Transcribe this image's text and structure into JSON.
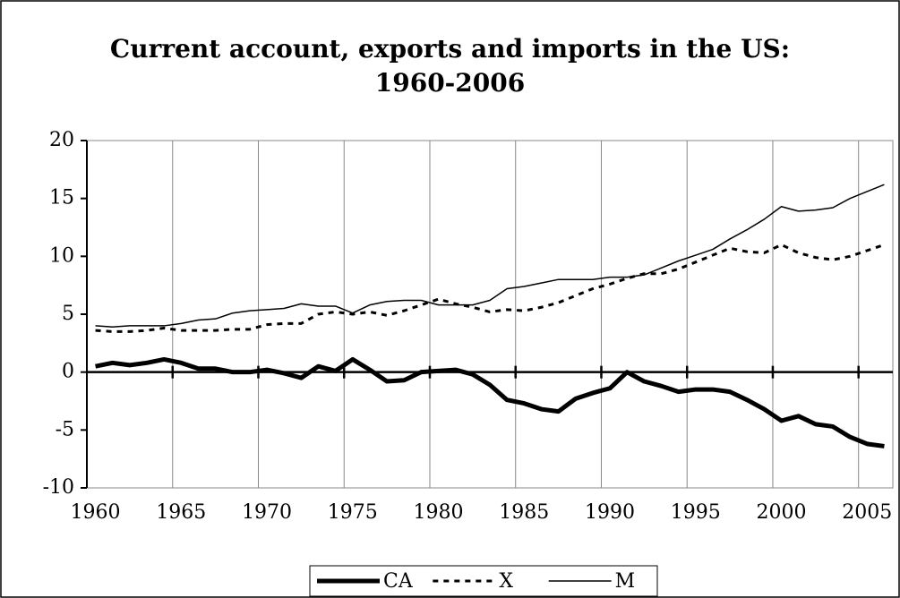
{
  "chart_data": {
    "type": "line",
    "title": "Current account, exports and imports in the US: 1960-2006",
    "categories": [
      "1960",
      null,
      null,
      null,
      null,
      "1965",
      null,
      null,
      null,
      null,
      "1970",
      null,
      null,
      null,
      null,
      "1975",
      null,
      null,
      null,
      null,
      "1980",
      null,
      null,
      null,
      null,
      "1985",
      null,
      null,
      null,
      null,
      "1990",
      null,
      null,
      null,
      null,
      "1995",
      null,
      null,
      null,
      null,
      "2000",
      null,
      null,
      null,
      null,
      "2005",
      null
    ],
    "series": [
      {
        "name": "CA",
        "color": "#000000",
        "linestyle": "solid",
        "values": [
          0.5,
          0.8,
          0.6,
          0.8,
          1.1,
          0.8,
          0.3,
          0.3,
          0.0,
          0.0,
          0.2,
          -0.1,
          -0.5,
          0.5,
          0.1,
          1.1,
          0.2,
          -0.8,
          -0.7,
          0.0,
          0.1,
          0.2,
          -0.2,
          -1.1,
          -2.4,
          -2.7,
          -3.2,
          -3.4,
          -2.3,
          -1.8,
          -1.4,
          0.0,
          -0.8,
          -1.2,
          -1.7,
          -1.5,
          -1.5,
          -1.7,
          -2.4,
          -3.2,
          -4.2,
          -3.8,
          -4.5,
          -4.7,
          -5.6,
          -6.2,
          -6.4
        ]
      },
      {
        "name": "X",
        "color": "#000000",
        "linestyle": "dashed",
        "values": [
          3.6,
          3.5,
          3.5,
          3.6,
          3.8,
          3.6,
          3.6,
          3.6,
          3.7,
          3.7,
          4.1,
          4.2,
          4.2,
          5.0,
          5.2,
          5.0,
          5.2,
          4.9,
          5.3,
          5.8,
          6.3,
          5.9,
          5.6,
          5.2,
          5.4,
          5.3,
          5.6,
          6.0,
          6.6,
          7.2,
          7.6,
          8.1,
          8.5,
          8.5,
          8.9,
          9.5,
          10.1,
          10.7,
          10.4,
          10.3,
          11.0,
          10.3,
          9.9,
          9.7,
          10.0,
          10.5,
          11.0
        ]
      },
      {
        "name": "M",
        "color": "#000000",
        "linestyle": "thin",
        "values": [
          4.0,
          3.9,
          4.0,
          4.0,
          4.0,
          4.2,
          4.5,
          4.6,
          5.1,
          5.3,
          5.4,
          5.5,
          5.9,
          5.7,
          5.7,
          5.1,
          5.8,
          6.1,
          6.2,
          6.2,
          5.8,
          5.8,
          5.8,
          6.2,
          7.2,
          7.4,
          7.7,
          8.0,
          8.0,
          8.0,
          8.2,
          8.2,
          8.4,
          9.0,
          9.6,
          10.1,
          10.6,
          11.5,
          12.3,
          13.2,
          14.3,
          13.9,
          14.0,
          14.2,
          15.0,
          15.6,
          16.2
        ]
      }
    ],
    "ylim": [
      -10,
      20
    ],
    "yticks": [
      -10,
      -5,
      0,
      5,
      10,
      15,
      20
    ],
    "grid": "vertical",
    "legend": "bottom"
  }
}
